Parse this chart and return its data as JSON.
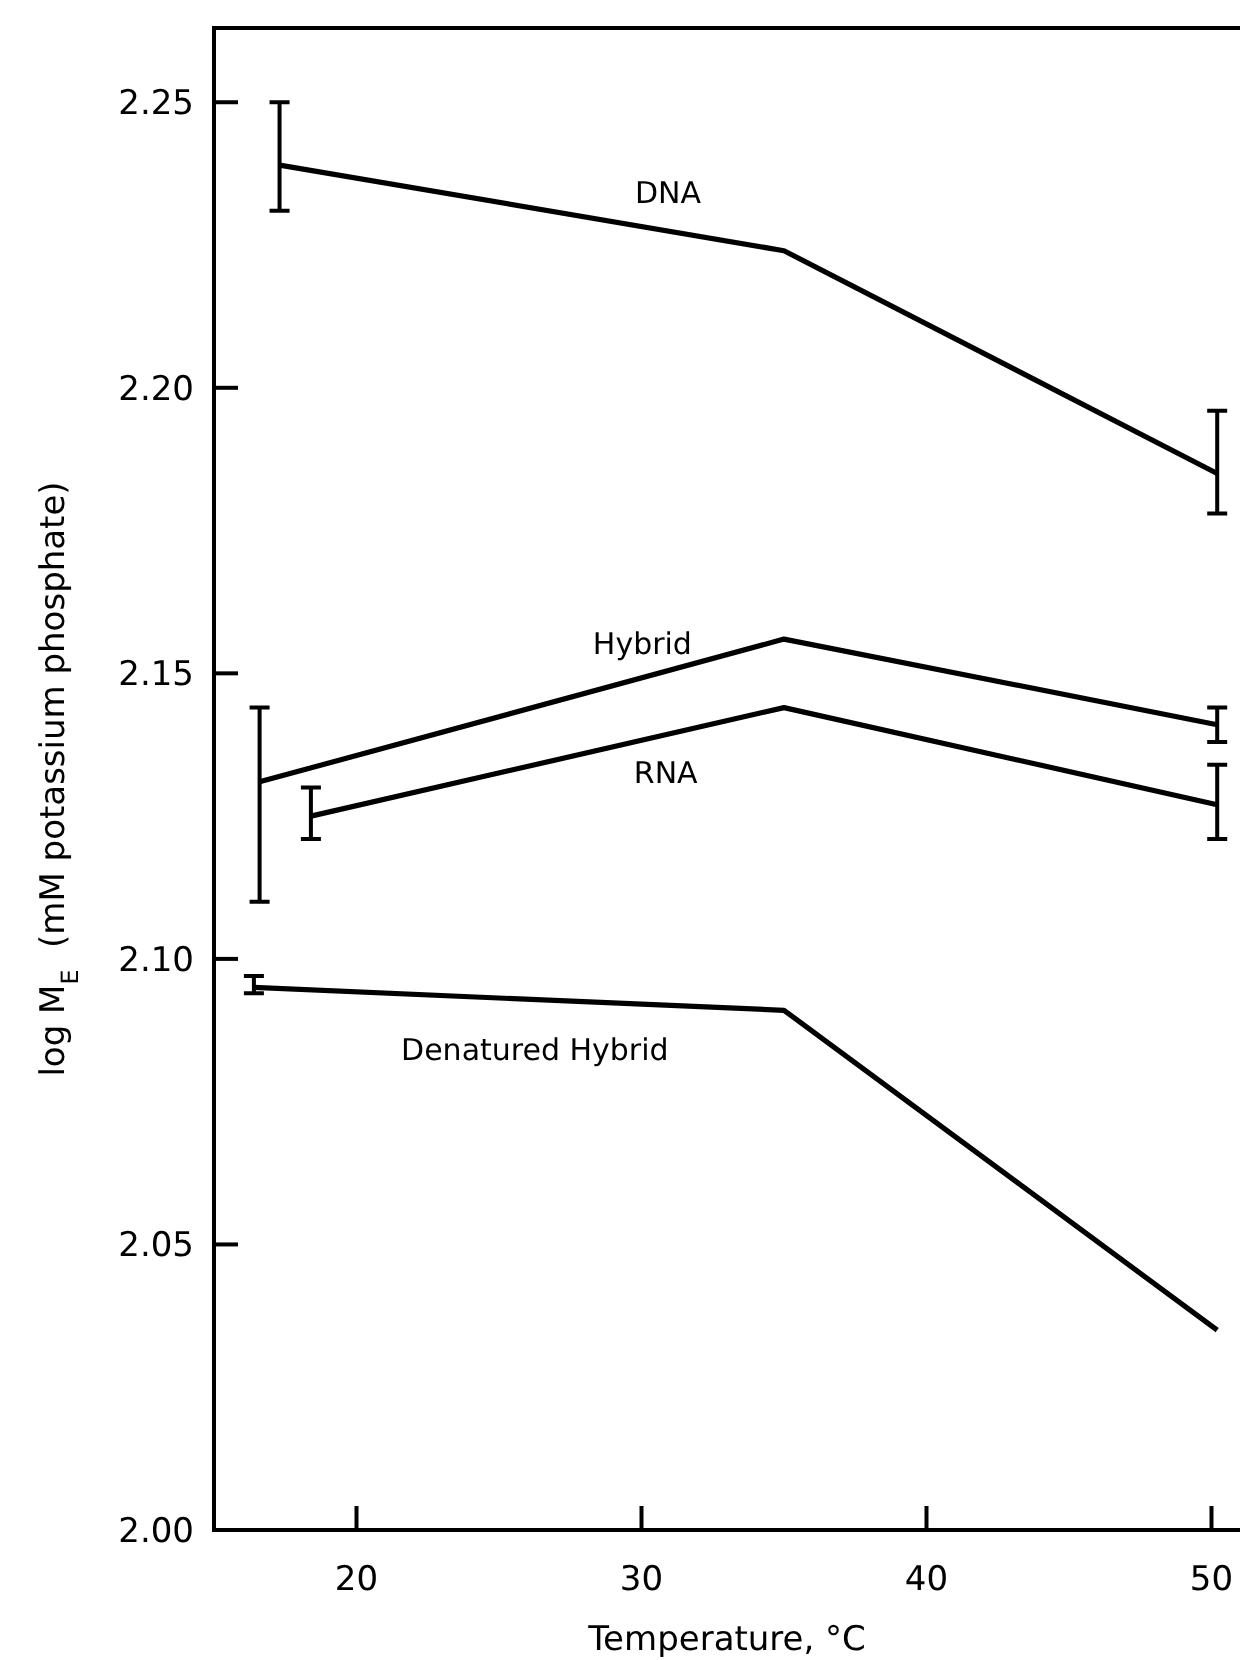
{
  "chart_data": {
    "type": "line",
    "xlabel": "Temperature, °C",
    "ylabel": "log M$_{E}$  (mM potassium phosphate)",
    "xlim": [
      15,
      51
    ],
    "xticks": [
      20,
      30,
      40,
      50
    ],
    "ylim": [
      2.0,
      2.263
    ],
    "yticks": [
      {
        "value": 2.0,
        "label": "2.00"
      },
      {
        "value": 2.05,
        "label": "2.05"
      },
      {
        "value": 2.1,
        "label": "2.10"
      },
      {
        "value": 2.15,
        "label": "2.15"
      },
      {
        "value": 2.2,
        "label": "2.20"
      },
      {
        "value": 2.25,
        "label": "2.25"
      }
    ],
    "grid": false,
    "marker": "none",
    "line_style": "solid",
    "series": [
      {
        "name": "DNA",
        "color": "#000000",
        "x": [
          17.3,
          35,
          50.2
        ],
        "values": [
          2.239,
          2.224,
          2.185
        ],
        "errors": [
          [
            2.231,
            2.25
          ],
          null,
          [
            2.178,
            2.196
          ]
        ]
      },
      {
        "name": "Hybrid",
        "color": "#000000",
        "x": [
          16.6,
          35,
          50.2
        ],
        "values": [
          2.131,
          2.156,
          2.141
        ],
        "errors": [
          [
            2.11,
            2.144
          ],
          null,
          [
            2.138,
            2.144
          ]
        ]
      },
      {
        "name": "RNA",
        "color": "#000000",
        "x": [
          18.4,
          35,
          50.2
        ],
        "values": [
          2.125,
          2.144,
          2.127
        ],
        "errors": [
          [
            2.121,
            2.13
          ],
          null,
          [
            2.121,
            2.134
          ]
        ]
      },
      {
        "name": "Denatured Hybrid",
        "color": "#000000",
        "x": [
          16.4,
          35,
          50.2
        ],
        "values": [
          2.095,
          2.091,
          2.035
        ],
        "errors": [
          [
            2.094,
            2.097
          ],
          null,
          null
        ]
      }
    ]
  }
}
